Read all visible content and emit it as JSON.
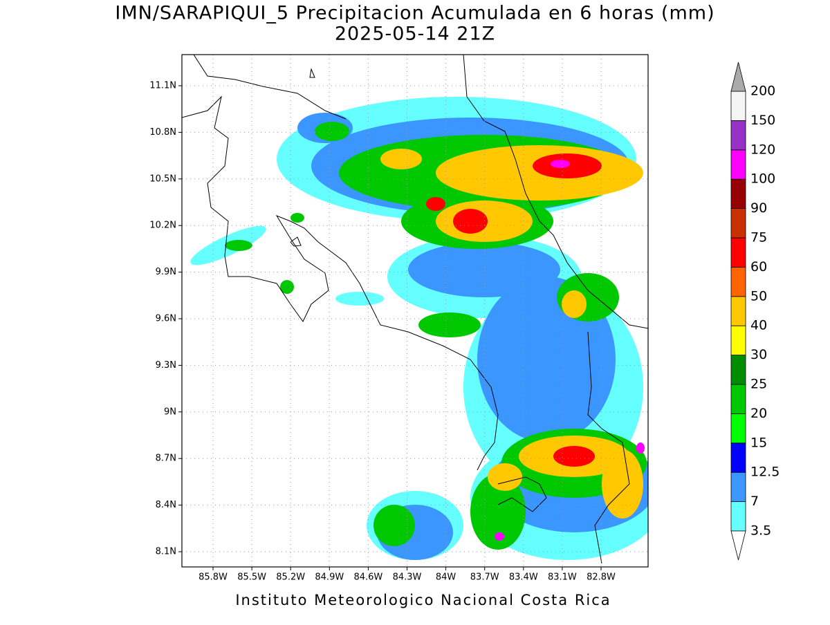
{
  "title": "IMN/SARAPIQUI_5 Precipitacion Acumulada en 6 horas (mm)",
  "subtitle": "2025-05-14 21Z",
  "lat_labels": [
    "11.1N",
    "10.8N",
    "10.5N",
    "10.2N",
    "9.9N",
    "9.6N",
    "9.3N",
    "9N",
    "8.7N",
    "8.4N",
    "8.1N"
  ],
  "lon_labels": [
    "85.8W",
    "85.5W",
    "85.2W",
    "84.9W",
    "84.6W",
    "84.3W",
    "84W",
    "83.7W",
    "83.4W",
    "83.1W",
    "82.8W"
  ],
  "colorbar": {
    "levels": [
      3.5,
      7,
      12.5,
      15,
      20,
      25,
      30,
      40,
      50,
      60,
      75,
      90,
      100,
      120,
      150,
      200
    ],
    "colors": [
      "#66ffff",
      "#3c96ff",
      "#0000ff",
      "#00ff00",
      "#00c800",
      "#008c00",
      "#ffff00",
      "#ffc800",
      "#ff6400",
      "#ff0000",
      "#c83200",
      "#960000",
      "#ff00ff",
      "#9632c8",
      "#f5f5f5"
    ],
    "under_color": "#ffffff",
    "over_color": "#aaaaaa"
  },
  "footer": "Instituto Meteorologico Nacional Costa Rica"
}
